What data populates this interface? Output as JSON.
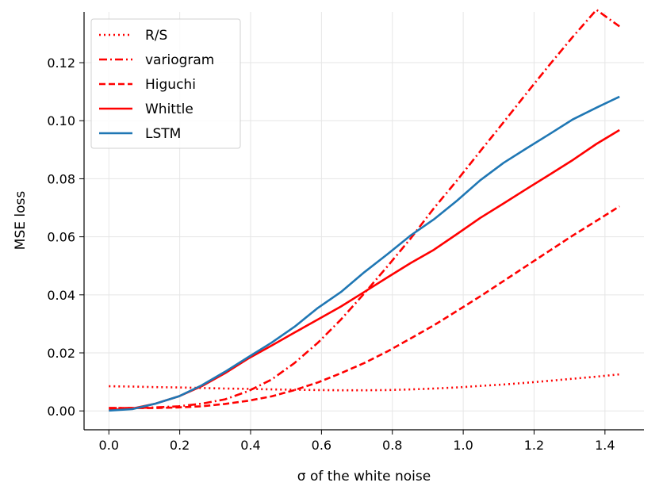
{
  "chart_data": {
    "type": "line",
    "title": "",
    "xlabel": "σ of the white noise",
    "ylabel": "MSE loss",
    "xlim": [
      -0.07,
      1.51
    ],
    "ylim": [
      -0.0065,
      0.1375
    ],
    "grid": true,
    "legend_position": "top-left",
    "x_ticks": [
      0.0,
      0.2,
      0.4,
      0.6,
      0.8,
      1.0,
      1.2,
      1.4
    ],
    "y_ticks": [
      0.0,
      0.02,
      0.04,
      0.06,
      0.08,
      0.1,
      0.12
    ],
    "x_tick_labels": [
      "0.0",
      "0.2",
      "0.4",
      "0.6",
      "0.8",
      "1.0",
      "1.2",
      "1.4"
    ],
    "y_tick_labels": [
      "0.00",
      "0.02",
      "0.04",
      "0.06",
      "0.08",
      "0.10",
      "0.12"
    ],
    "x": [
      0.0,
      0.066,
      0.131,
      0.197,
      0.262,
      0.328,
      0.393,
      0.459,
      0.524,
      0.59,
      0.655,
      0.721,
      0.786,
      0.852,
      0.917,
      0.983,
      1.048,
      1.114,
      1.179,
      1.245,
      1.31,
      1.376,
      1.441
    ],
    "series": [
      {
        "name": "R/S",
        "color": "#ff0000",
        "style": "dotted",
        "values": [
          0.0085,
          0.0084,
          0.0082,
          0.0081,
          0.0079,
          0.0077,
          0.0076,
          0.0074,
          0.0073,
          0.0072,
          0.0071,
          0.0071,
          0.0072,
          0.0074,
          0.0077,
          0.0081,
          0.0086,
          0.0091,
          0.0097,
          0.0104,
          0.0111,
          0.0118,
          0.0126
        ]
      },
      {
        "name": "variogram",
        "color": "#ff0000",
        "style": "dashdot",
        "values": [
          0.001,
          0.001,
          0.0012,
          0.0016,
          0.0025,
          0.004,
          0.0068,
          0.0108,
          0.0165,
          0.0235,
          0.0315,
          0.0405,
          0.0498,
          0.0595,
          0.0698,
          0.0795,
          0.0895,
          0.0995,
          0.1095,
          0.1195,
          0.129,
          0.1382,
          0.1325
        ]
      },
      {
        "name": "Higuchi",
        "color": "#ff0000",
        "style": "dashed",
        "values": [
          0.001,
          0.001,
          0.001,
          0.0012,
          0.0016,
          0.0024,
          0.0035,
          0.005,
          0.0072,
          0.0098,
          0.013,
          0.0165,
          0.0205,
          0.025,
          0.0295,
          0.0345,
          0.0395,
          0.0448,
          0.05,
          0.0553,
          0.0605,
          0.0655,
          0.0705
        ]
      },
      {
        "name": "Whittle",
        "color": "#ff0000",
        "style": "solid",
        "values": [
          0.0003,
          0.0008,
          0.0025,
          0.005,
          0.0085,
          0.013,
          0.018,
          0.0225,
          0.027,
          0.0315,
          0.036,
          0.041,
          0.046,
          0.051,
          0.0555,
          0.061,
          0.0665,
          0.0715,
          0.0765,
          0.0815,
          0.0865,
          0.092,
          0.0968
        ]
      },
      {
        "name": "LSTM",
        "color": "#1f77b4",
        "style": "solid",
        "values": [
          0.0001,
          0.0006,
          0.0025,
          0.005,
          0.0088,
          0.0135,
          0.0185,
          0.0235,
          0.029,
          0.0355,
          0.041,
          0.0478,
          0.054,
          0.0605,
          0.066,
          0.0725,
          0.0795,
          0.0855,
          0.0905,
          0.0955,
          0.1005,
          0.1045,
          0.1083
        ]
      }
    ]
  }
}
